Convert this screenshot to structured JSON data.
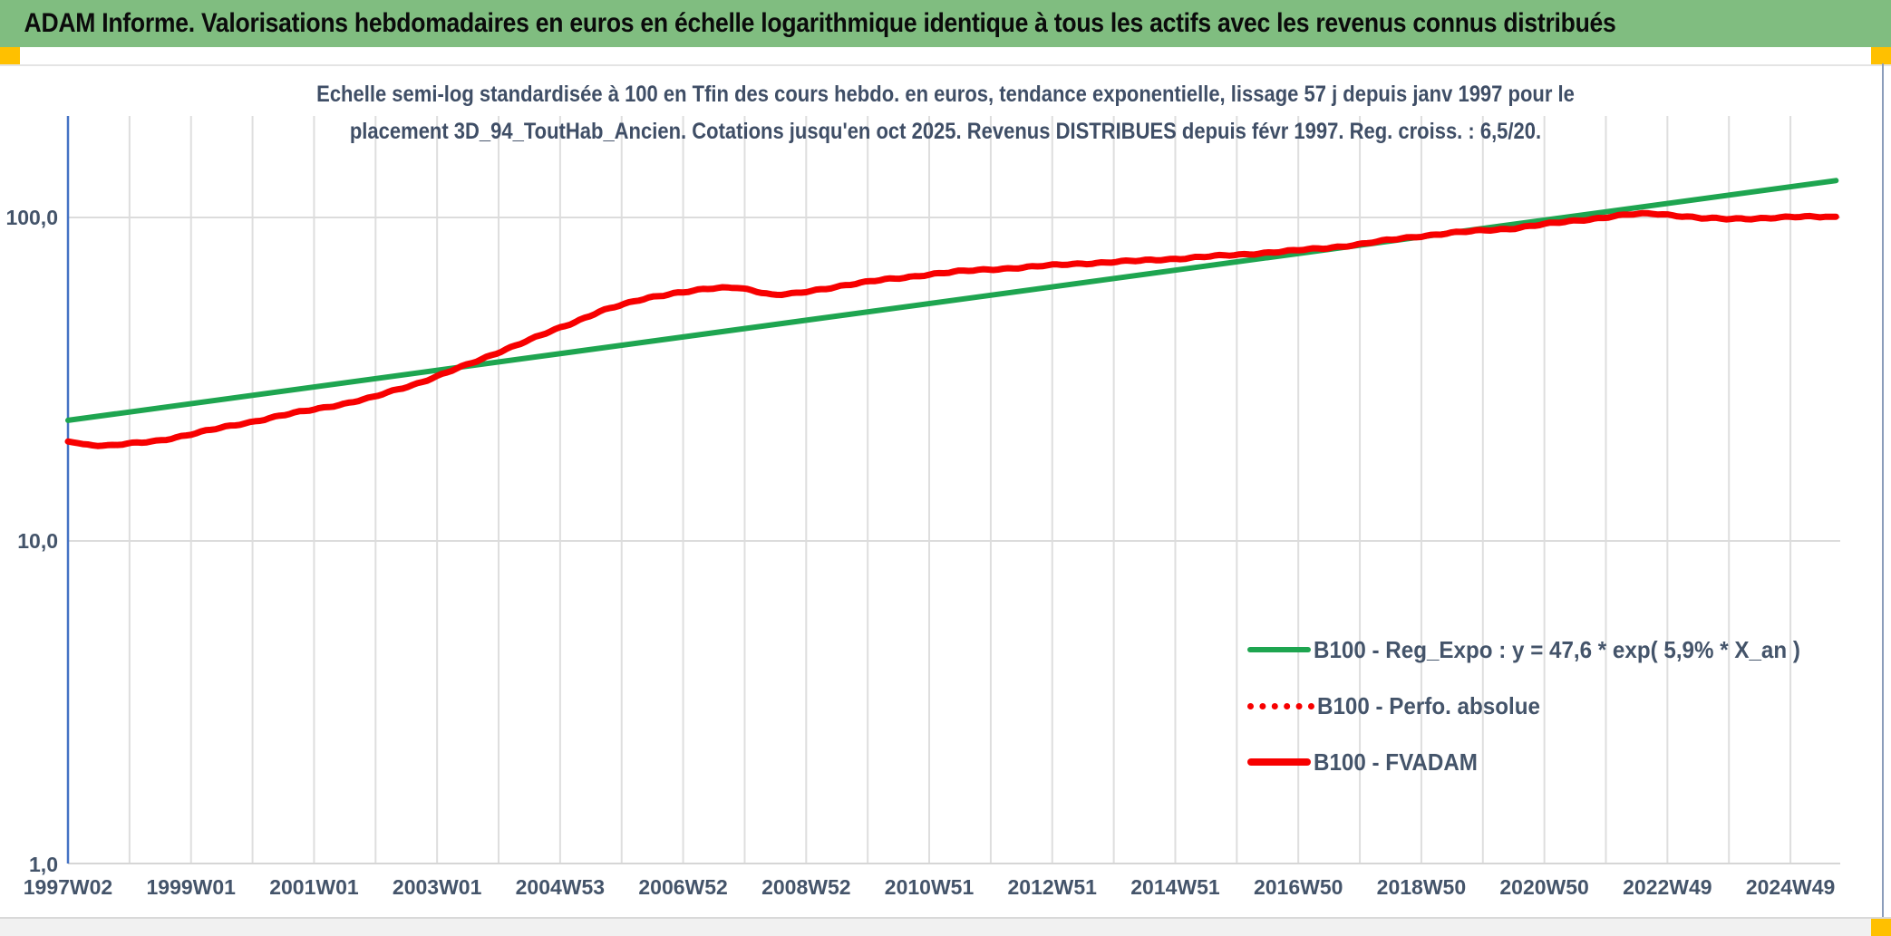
{
  "window": {
    "header_title": "ADAM Informe. Valorisations hebdomadaires en euros en échelle logarithmique identique à tous les actifs avec les revenus connus distribués",
    "header_bg": "#80bd80",
    "accent_square_color": "#ffc000"
  },
  "chart_title": {
    "line1": "Echelle semi-log standardisée à 100 en Tfin des cours hebdo. en euros, tendance exponentielle, lissage 57 j depuis janv 1997 pour le",
    "line2": "placement 3D_94_ToutHab_Ancien. Cotations jusqu'en oct 2025. Revenus DISTRIBUES depuis févr 1997. Reg. croiss. : 6,5/20."
  },
  "chart_data": {
    "type": "line",
    "title": "Echelle semi-log standardisée à 100 en Tfin des cours hebdo. en euros, tendance exponentielle, lissage 57 j depuis janv 1997 pour le placement 3D_94_ToutHab_Ancien. Cotations jusqu'en oct 2025. Revenus DISTRIBUES depuis févr 1997. Reg. croiss. : 6,5/20.",
    "x_axis": {
      "type": "weekly-categories",
      "tick_labels": [
        "1997W02",
        "1999W01",
        "2001W01",
        "2003W01",
        "2004W53",
        "2006W52",
        "2008W52",
        "2010W51",
        "2012W51",
        "2014W51",
        "2016W50",
        "2018W50",
        "2020W50",
        "2022W49",
        "2024W49"
      ],
      "start_year": 1997.04,
      "end_year": 2025.78,
      "years_per_tick": 2
    },
    "y_axis": {
      "scale": "log10",
      "tick_labels": [
        "100,0",
        "10,0",
        "1,0"
      ],
      "tick_values": [
        100,
        10,
        1
      ],
      "range": [
        1,
        215
      ],
      "axis_color": "#4472c4"
    },
    "grid": {
      "vertical": "yearly",
      "horizontal": "decades",
      "color": "#dedede"
    },
    "legend": {
      "position": "inside-right-lower",
      "entries": [
        {
          "label": "B100 - Reg_Expo : y = 47,6 * exp( 5,9% *  X_an )",
          "color": "#1ea550",
          "style": "solid"
        },
        {
          "label": "B100 - Perfo. absolue",
          "color": "#f70000",
          "style": "dotted"
        },
        {
          "label": "B100 - FVADAM",
          "color": "#f70000",
          "style": "solid-thick"
        }
      ]
    },
    "series": [
      {
        "name": "B100 - Reg_Expo : y = 47,6 * exp( 5,9% *  X_an )",
        "key": "reg_expo",
        "color": "#1ea550",
        "style": "solid",
        "points": [
          [
            1997.04,
            23.6
          ],
          [
            2025.78,
            130.0
          ]
        ]
      },
      {
        "name": "B100 - Perfo. absolue",
        "key": "perfo_absolue",
        "color": "#f70000",
        "style": "dotted",
        "points_same_as": "fvadam"
      },
      {
        "name": "B100 - FVADAM",
        "key": "fvadam",
        "color": "#f70000",
        "style": "solid",
        "points": [
          [
            1997.04,
            20.3
          ],
          [
            1997.3,
            19.9
          ],
          [
            1997.7,
            19.7
          ],
          [
            1998.1,
            20.0
          ],
          [
            1998.5,
            20.4
          ],
          [
            1999.0,
            21.3
          ],
          [
            1999.5,
            22.3
          ],
          [
            2000.0,
            23.3
          ],
          [
            2000.5,
            24.4
          ],
          [
            2001.0,
            25.4
          ],
          [
            2001.5,
            26.5
          ],
          [
            2002.0,
            27.8
          ],
          [
            2002.7,
            30.6
          ],
          [
            2003.2,
            33.2
          ],
          [
            2003.7,
            36.0
          ],
          [
            2004.2,
            39.5
          ],
          [
            2004.7,
            43.0
          ],
          [
            2005.2,
            46.8
          ],
          [
            2005.7,
            51.5
          ],
          [
            2006.1,
            54.0
          ],
          [
            2006.5,
            56.5
          ],
          [
            2006.9,
            58.5
          ],
          [
            2007.4,
            60.0
          ],
          [
            2007.9,
            60.8
          ],
          [
            2008.2,
            59.5
          ],
          [
            2008.5,
            57.6
          ],
          [
            2008.9,
            58.2
          ],
          [
            2009.3,
            60.0
          ],
          [
            2009.7,
            62.0
          ],
          [
            2010.1,
            63.5
          ],
          [
            2010.6,
            65.0
          ],
          [
            2011.1,
            67.0
          ],
          [
            2011.5,
            68.0
          ],
          [
            2012.0,
            69.0
          ],
          [
            2012.5,
            70.0
          ],
          [
            2013.0,
            71.0
          ],
          [
            2013.5,
            72.0
          ],
          [
            2014.0,
            72.8
          ],
          [
            2014.5,
            73.5
          ],
          [
            2015.0,
            74.5
          ],
          [
            2015.5,
            75.5
          ],
          [
            2016.0,
            76.5
          ],
          [
            2016.5,
            77.8
          ],
          [
            2017.0,
            79.0
          ],
          [
            2017.5,
            80.5
          ],
          [
            2018.0,
            82.5
          ],
          [
            2018.5,
            85.0
          ],
          [
            2019.0,
            87.5
          ],
          [
            2019.5,
            89.5
          ],
          [
            2020.0,
            91.0
          ],
          [
            2020.5,
            92.5
          ],
          [
            2021.0,
            95.0
          ],
          [
            2021.5,
            97.5
          ],
          [
            2022.0,
            100.0
          ],
          [
            2022.4,
            102.0
          ],
          [
            2022.8,
            102.8
          ],
          [
            2023.2,
            101.5
          ],
          [
            2023.6,
            99.5
          ],
          [
            2024.0,
            98.8
          ],
          [
            2024.4,
            99.3
          ],
          [
            2024.8,
            100.0
          ],
          [
            2025.2,
            100.3
          ],
          [
            2025.78,
            100.5
          ]
        ]
      }
    ]
  }
}
